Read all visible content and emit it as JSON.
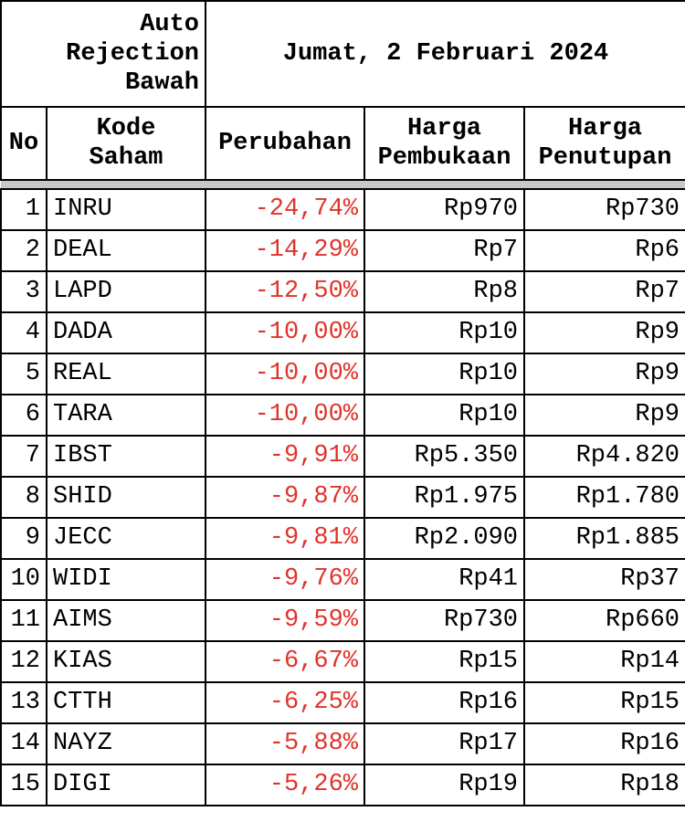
{
  "header": {
    "title": "Auto Rejection Bawah",
    "date": "Jumat, 2 Februari 2024"
  },
  "table": {
    "columns": [
      "No",
      "Kode Saham",
      "Perubahan",
      "Harga Pembukaan",
      "Harga Penutupan"
    ],
    "rows": [
      [
        "1",
        "INRU",
        "-24,74%",
        "Rp970",
        "Rp730"
      ],
      [
        "2",
        "DEAL",
        "-14,29%",
        "Rp7",
        "Rp6"
      ],
      [
        "3",
        "LAPD",
        "-12,50%",
        "Rp8",
        "Rp7"
      ],
      [
        "4",
        "DADA",
        "-10,00%",
        "Rp10",
        "Rp9"
      ],
      [
        "5",
        "REAL",
        "-10,00%",
        "Rp10",
        "Rp9"
      ],
      [
        "6",
        "TARA",
        "-10,00%",
        "Rp10",
        "Rp9"
      ],
      [
        "7",
        "IBST",
        "-9,91%",
        "Rp5.350",
        "Rp4.820"
      ],
      [
        "8",
        "SHID",
        "-9,87%",
        "Rp1.975",
        "Rp1.780"
      ],
      [
        "9",
        "JECC",
        "-9,81%",
        "Rp2.090",
        "Rp1.885"
      ],
      [
        "10",
        "WIDI",
        "-9,76%",
        "Rp41",
        "Rp37"
      ],
      [
        "11",
        "AIMS",
        "-9,59%",
        "Rp730",
        "Rp660"
      ],
      [
        "12",
        "KIAS",
        "-6,67%",
        "Rp15",
        "Rp14"
      ],
      [
        "13",
        "CTTH",
        "-6,25%",
        "Rp16",
        "Rp15"
      ],
      [
        "14",
        "NAYZ",
        "-5,88%",
        "Rp17",
        "Rp16"
      ],
      [
        "15",
        "DIGI",
        "-5,26%",
        "Rp19",
        "Rp18"
      ]
    ]
  }
}
